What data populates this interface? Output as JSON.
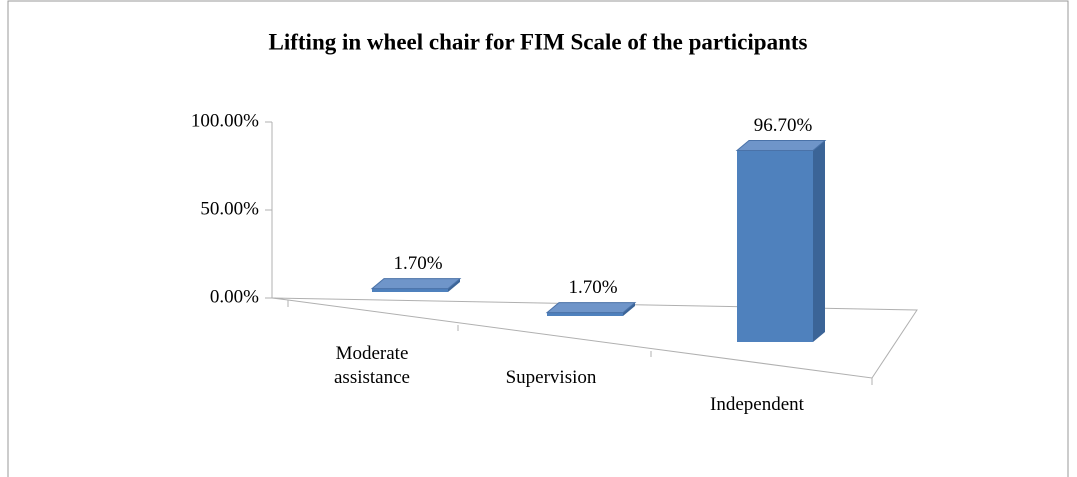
{
  "chart_data": {
    "type": "bar3d",
    "title": "Lifting in wheel chair for FIM Scale of the participants",
    "categories": [
      "Moderate assistance",
      "Supervision",
      "Independent"
    ],
    "values": [
      1.7,
      1.7,
      96.7
    ],
    "value_labels": [
      "1.70%",
      "1.70%",
      "96.70%"
    ],
    "color": "#4f81bd",
    "ylim": [
      0,
      100
    ],
    "yticks": [
      {
        "value": 0,
        "label": "0.00%"
      },
      {
        "value": 50,
        "label": "50.00%"
      },
      {
        "value": 100,
        "label": "100.00%"
      }
    ]
  }
}
